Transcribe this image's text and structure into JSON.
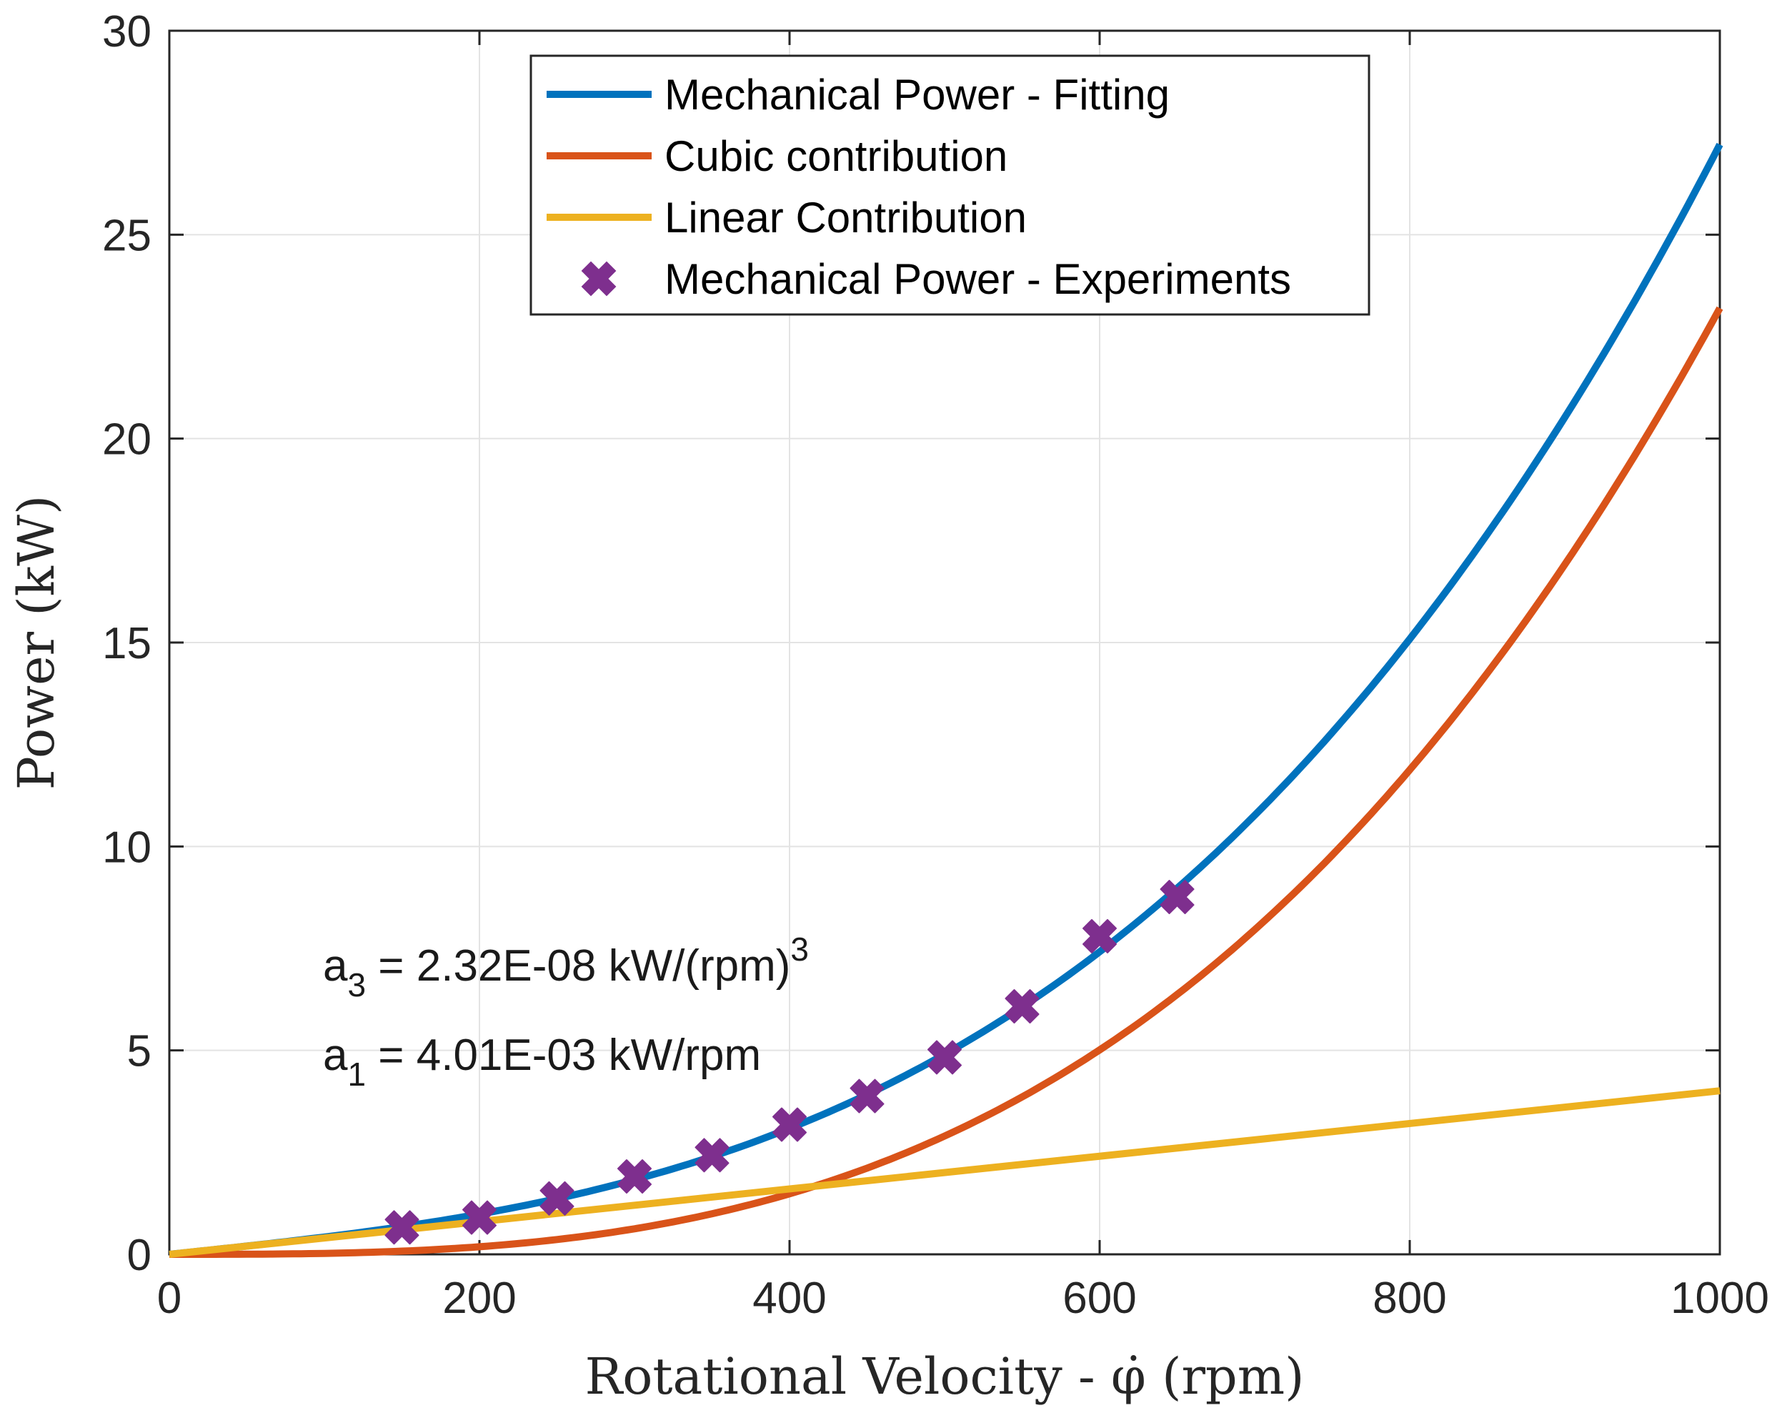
{
  "chart_data": {
    "type": "line",
    "title": "",
    "xlabel": "Rotational Velocity - φ̇ (rpm)",
    "ylabel": "Power (kW)",
    "xlim": [
      0,
      1000
    ],
    "ylim": [
      0,
      30
    ],
    "xticks": [
      0,
      200,
      400,
      600,
      800,
      1000
    ],
    "yticks": [
      0,
      5,
      10,
      15,
      20,
      25,
      30
    ],
    "grid": true,
    "legend_position": "top-center",
    "coefficients": {
      "a3": 2.32e-08,
      "a1": 0.00401
    },
    "series": [
      {
        "name": "Mechanical Power - Fitting",
        "kind": "line",
        "color": "#0072BD",
        "x": [
          0,
          50,
          100,
          150,
          200,
          250,
          300,
          350,
          400,
          450,
          500,
          550,
          600,
          650,
          700,
          750,
          800,
          850,
          900,
          950,
          1000
        ],
        "y": [
          0,
          0.203,
          0.424,
          0.68,
          0.988,
          1.365,
          1.829,
          2.398,
          3.089,
          3.919,
          4.905,
          6.066,
          7.417,
          8.978,
          10.765,
          12.795,
          15.087,
          17.657,
          20.522,
          23.701,
          27.21
        ]
      },
      {
        "name": "Cubic contribution",
        "kind": "line",
        "color": "#D95319",
        "x": [
          0,
          50,
          100,
          150,
          200,
          250,
          300,
          350,
          400,
          450,
          500,
          550,
          600,
          650,
          700,
          750,
          800,
          850,
          900,
          950,
          1000
        ],
        "y": [
          0,
          0.003,
          0.023,
          0.078,
          0.186,
          0.363,
          0.626,
          0.995,
          1.485,
          2.114,
          2.9,
          3.86,
          5.011,
          6.372,
          7.958,
          9.788,
          11.878,
          14.248,
          16.913,
          19.892,
          23.2
        ]
      },
      {
        "name": "Linear Contribution",
        "kind": "line",
        "color": "#EDB120",
        "x": [
          0,
          1000
        ],
        "y": [
          0,
          4.01
        ]
      },
      {
        "name": "Mechanical Power - Experiments",
        "kind": "scatter",
        "marker": "x",
        "color": "#7E2F8E",
        "x": [
          150,
          200,
          250,
          300,
          350,
          400,
          450,
          500,
          550,
          600,
          650
        ],
        "y": [
          0.66,
          0.9,
          1.37,
          1.91,
          2.43,
          3.18,
          3.88,
          4.83,
          6.08,
          7.8,
          8.76
        ]
      }
    ],
    "annotations": [
      {
        "base": "a",
        "sub": "3",
        "text": " = 2.32E-08 kW/(rpm)",
        "sup": "3"
      },
      {
        "base": "a",
        "sub": "1",
        "text": " = 4.01E-03 kW/rpm",
        "sup": ""
      }
    ]
  }
}
